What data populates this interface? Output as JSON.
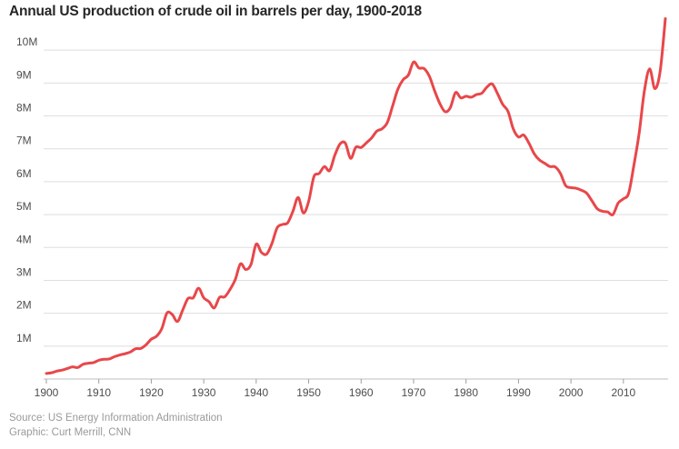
{
  "chart_data": {
    "type": "line",
    "title": "Annual US production of crude oil in barrels per day, 1900-2018",
    "xlabel": "",
    "ylabel": "",
    "xlim": [
      1900,
      2018
    ],
    "ylim": [
      0,
      11000000
    ],
    "grid": true,
    "y_ticks": [
      {
        "value": 1000000,
        "label": "1M"
      },
      {
        "value": 2000000,
        "label": "2M"
      },
      {
        "value": 3000000,
        "label": "3M"
      },
      {
        "value": 4000000,
        "label": "4M"
      },
      {
        "value": 5000000,
        "label": "5M"
      },
      {
        "value": 6000000,
        "label": "6M"
      },
      {
        "value": 7000000,
        "label": "7M"
      },
      {
        "value": 8000000,
        "label": "8M"
      },
      {
        "value": 9000000,
        "label": "9M"
      },
      {
        "value": 10000000,
        "label": "10M"
      }
    ],
    "x_ticks": [
      {
        "value": 1900,
        "label": "1900"
      },
      {
        "value": 1910,
        "label": "1910"
      },
      {
        "value": 1920,
        "label": "1920"
      },
      {
        "value": 1930,
        "label": "1930"
      },
      {
        "value": 1940,
        "label": "1940"
      },
      {
        "value": 1950,
        "label": "1950"
      },
      {
        "value": 1960,
        "label": "1960"
      },
      {
        "value": 1970,
        "label": "1970"
      },
      {
        "value": 1980,
        "label": "1980"
      },
      {
        "value": 1990,
        "label": "1990"
      },
      {
        "value": 2000,
        "label": "2000"
      },
      {
        "value": 2010,
        "label": "2010"
      }
    ],
    "series": [
      {
        "color": "#e8474a",
        "points": [
          [
            1900,
            170000
          ],
          [
            1901,
            190000
          ],
          [
            1902,
            240000
          ],
          [
            1903,
            270000
          ],
          [
            1904,
            320000
          ],
          [
            1905,
            370000
          ],
          [
            1906,
            350000
          ],
          [
            1907,
            450000
          ],
          [
            1908,
            480000
          ],
          [
            1909,
            500000
          ],
          [
            1910,
            570000
          ],
          [
            1911,
            600000
          ],
          [
            1912,
            610000
          ],
          [
            1913,
            680000
          ],
          [
            1914,
            730000
          ],
          [
            1915,
            770000
          ],
          [
            1916,
            820000
          ],
          [
            1917,
            920000
          ],
          [
            1918,
            930000
          ],
          [
            1919,
            1040000
          ],
          [
            1920,
            1210000
          ],
          [
            1921,
            1300000
          ],
          [
            1922,
            1530000
          ],
          [
            1923,
            2010000
          ],
          [
            1924,
            1960000
          ],
          [
            1925,
            1750000
          ],
          [
            1926,
            2100000
          ],
          [
            1927,
            2450000
          ],
          [
            1928,
            2470000
          ],
          [
            1929,
            2760000
          ],
          [
            1930,
            2470000
          ],
          [
            1931,
            2350000
          ],
          [
            1932,
            2160000
          ],
          [
            1933,
            2480000
          ],
          [
            1934,
            2500000
          ],
          [
            1935,
            2720000
          ],
          [
            1936,
            3020000
          ],
          [
            1937,
            3500000
          ],
          [
            1938,
            3330000
          ],
          [
            1939,
            3480000
          ],
          [
            1940,
            4100000
          ],
          [
            1941,
            3850000
          ],
          [
            1942,
            3800000
          ],
          [
            1943,
            4120000
          ],
          [
            1944,
            4600000
          ],
          [
            1945,
            4700000
          ],
          [
            1946,
            4750000
          ],
          [
            1947,
            5100000
          ],
          [
            1948,
            5520000
          ],
          [
            1949,
            5050000
          ],
          [
            1950,
            5400000
          ],
          [
            1951,
            6150000
          ],
          [
            1952,
            6250000
          ],
          [
            1953,
            6460000
          ],
          [
            1954,
            6340000
          ],
          [
            1955,
            6810000
          ],
          [
            1956,
            7150000
          ],
          [
            1957,
            7170000
          ],
          [
            1958,
            6710000
          ],
          [
            1959,
            7050000
          ],
          [
            1960,
            7040000
          ],
          [
            1961,
            7180000
          ],
          [
            1962,
            7330000
          ],
          [
            1963,
            7540000
          ],
          [
            1964,
            7610000
          ],
          [
            1965,
            7800000
          ],
          [
            1966,
            8300000
          ],
          [
            1967,
            8810000
          ],
          [
            1968,
            9100000
          ],
          [
            1969,
            9240000
          ],
          [
            1970,
            9640000
          ],
          [
            1971,
            9460000
          ],
          [
            1972,
            9440000
          ],
          [
            1973,
            9210000
          ],
          [
            1974,
            8770000
          ],
          [
            1975,
            8380000
          ],
          [
            1976,
            8130000
          ],
          [
            1977,
            8250000
          ],
          [
            1978,
            8710000
          ],
          [
            1979,
            8550000
          ],
          [
            1980,
            8600000
          ],
          [
            1981,
            8570000
          ],
          [
            1982,
            8650000
          ],
          [
            1983,
            8690000
          ],
          [
            1984,
            8880000
          ],
          [
            1985,
            8970000
          ],
          [
            1986,
            8680000
          ],
          [
            1987,
            8350000
          ],
          [
            1988,
            8140000
          ],
          [
            1989,
            7610000
          ],
          [
            1990,
            7360000
          ],
          [
            1991,
            7420000
          ],
          [
            1992,
            7170000
          ],
          [
            1993,
            6850000
          ],
          [
            1994,
            6660000
          ],
          [
            1995,
            6560000
          ],
          [
            1996,
            6460000
          ],
          [
            1997,
            6450000
          ],
          [
            1998,
            6250000
          ],
          [
            1999,
            5880000
          ],
          [
            2000,
            5820000
          ],
          [
            2001,
            5800000
          ],
          [
            2002,
            5740000
          ],
          [
            2003,
            5650000
          ],
          [
            2004,
            5420000
          ],
          [
            2005,
            5180000
          ],
          [
            2006,
            5100000
          ],
          [
            2007,
            5080000
          ],
          [
            2008,
            5000000
          ],
          [
            2009,
            5350000
          ],
          [
            2010,
            5480000
          ],
          [
            2011,
            5650000
          ],
          [
            2012,
            6500000
          ],
          [
            2013,
            7470000
          ],
          [
            2014,
            8760000
          ],
          [
            2015,
            9430000
          ],
          [
            2016,
            8830000
          ],
          [
            2017,
            9350000
          ],
          [
            2018,
            10960000
          ]
        ]
      }
    ]
  },
  "footer": {
    "source": "Source: US Energy Information Administration",
    "credit": "Graphic: Curt Merrill, CNN"
  }
}
